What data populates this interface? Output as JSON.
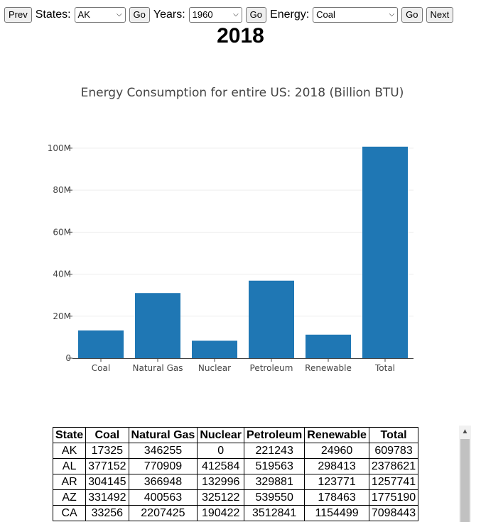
{
  "toolbar": {
    "prev_label": "Prev",
    "states_label": "States:",
    "state_value": "AK",
    "go1_label": "Go",
    "years_label": "Years:",
    "year_value": "1960",
    "go2_label": "Go",
    "energy_label": "Energy:",
    "energy_value": "Coal",
    "go3_label": "Go",
    "next_label": "Next"
  },
  "heading": "2018",
  "chart_data": {
    "type": "bar",
    "title": "Energy Consumption for entire US: 2018 (Billion BTU)",
    "categories": [
      "Coal",
      "Natural Gas",
      "Nuclear",
      "Petroleum",
      "Renewable",
      "Total"
    ],
    "values": [
      13200000,
      31000000,
      8300000,
      36900000,
      11200000,
      100700000
    ],
    "ylim": [
      0,
      103000000
    ],
    "yticks": [
      0,
      20000000,
      40000000,
      60000000,
      80000000,
      100000000
    ],
    "ytick_labels": [
      "0",
      "20M",
      "40M",
      "60M",
      "80M",
      "100M"
    ],
    "bar_color": "#1f77b4",
    "grid": true
  },
  "table": {
    "headers": [
      "State",
      "Coal",
      "Natural Gas",
      "Nuclear",
      "Petroleum",
      "Renewable",
      "Total"
    ],
    "rows": [
      [
        "AK",
        "17325",
        "346255",
        "0",
        "221243",
        "24960",
        "609783"
      ],
      [
        "AL",
        "377152",
        "770909",
        "412584",
        "519563",
        "298413",
        "2378621"
      ],
      [
        "AR",
        "304145",
        "366948",
        "132996",
        "329881",
        "123771",
        "1257741"
      ],
      [
        "AZ",
        "331492",
        "400563",
        "325122",
        "539550",
        "178463",
        "1775190"
      ],
      [
        "CA",
        "33256",
        "2207425",
        "190422",
        "3512841",
        "1154499",
        "7098443"
      ]
    ]
  },
  "icons": {
    "dropdown": "chevron-down-icon",
    "scroll_up": "scroll-up-arrow-icon"
  }
}
